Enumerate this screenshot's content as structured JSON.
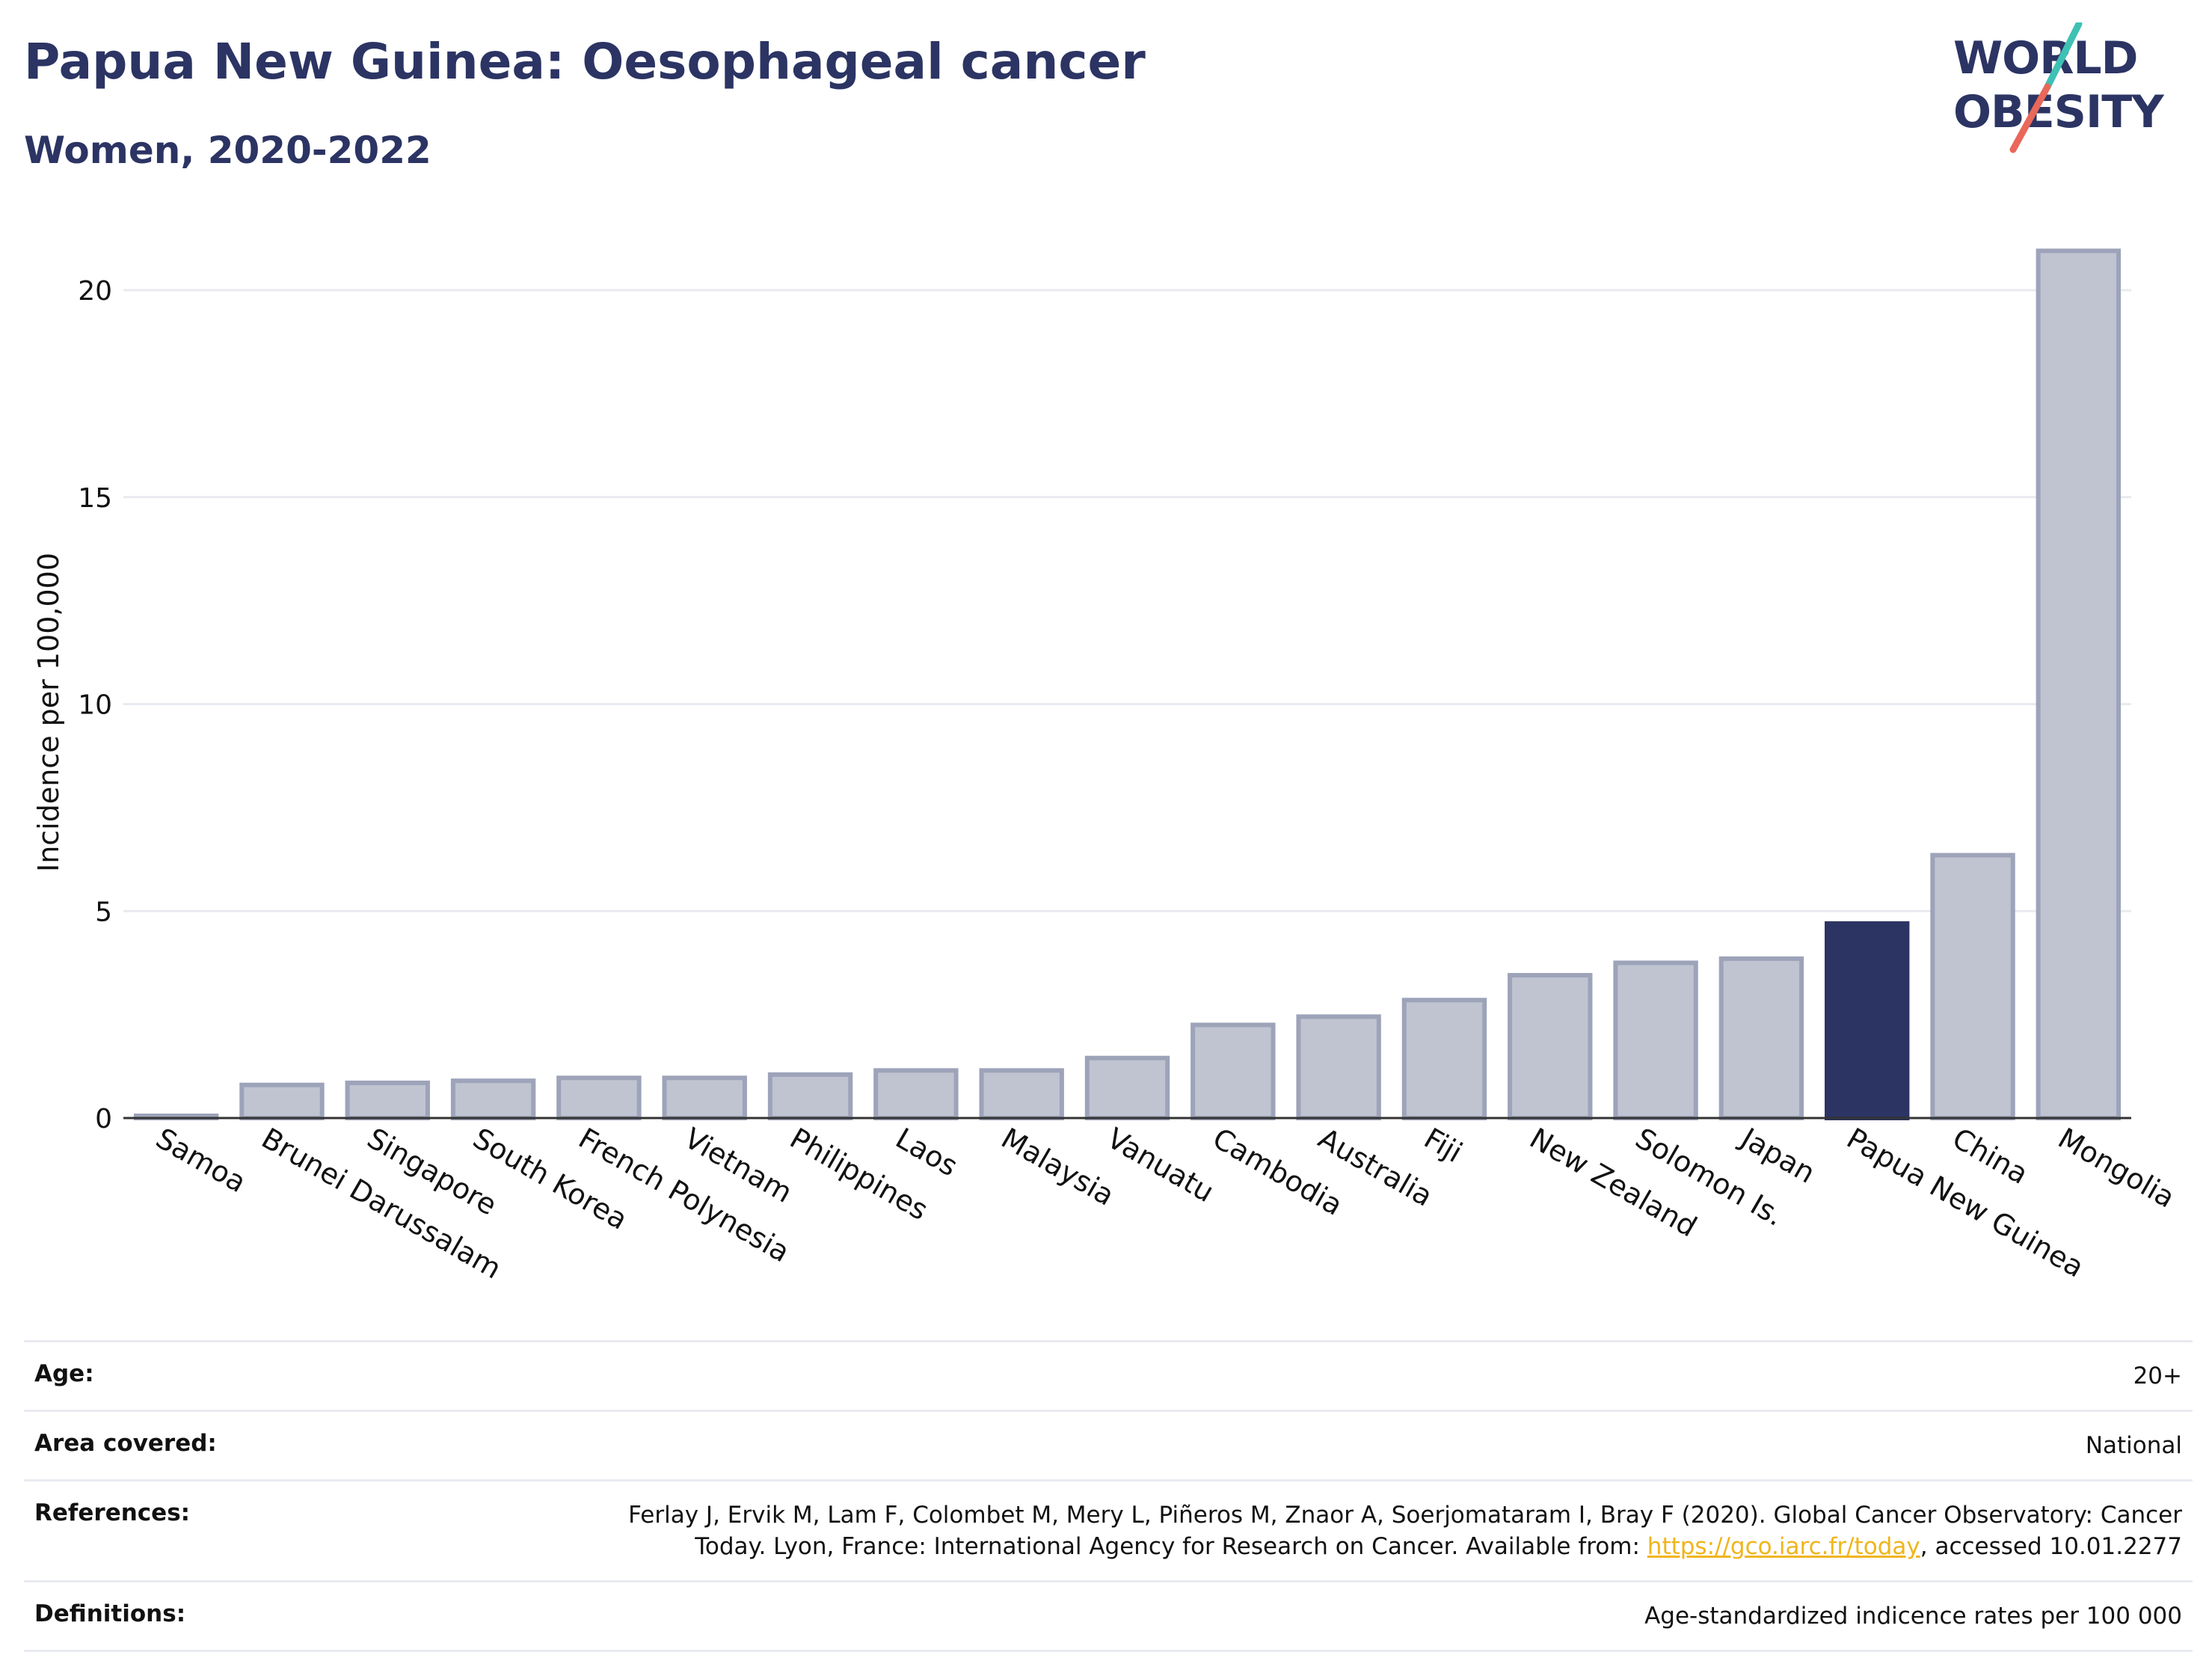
{
  "header": {
    "title": "Papua New Guinea: Oesophageal cancer",
    "subtitle": "Women, 2020-2022"
  },
  "logo": {
    "line1": "WORLD",
    "line2": "OBESITY",
    "slash_colors": [
      "#3ec1b4",
      "#e8685a"
    ],
    "text_color": "#2b3463"
  },
  "colors": {
    "highlight": "#2b3463",
    "bar_fill": "#c0c4d1",
    "bar_border": "#9da3b9",
    "grid": "#e8eaf0",
    "link": "#f0b51b"
  },
  "chart_data": {
    "type": "bar",
    "title": "Papua New Guinea: Oesophageal cancer",
    "subtitle": "Women, 2020-2022",
    "xlabel": "",
    "ylabel": "Incidence per 100,000",
    "ylim": [
      0,
      22
    ],
    "yticks": [
      0,
      5,
      10,
      15,
      20
    ],
    "grid": true,
    "highlight": "Papua New Guinea",
    "categories": [
      "Samoa",
      "Brunei Darussalam",
      "Singapore",
      "South Korea",
      "French Polynesia",
      "Vietnam",
      "Philippines",
      "Laos",
      "Malaysia",
      "Vanuatu",
      "Cambodia",
      "Australia",
      "Fiji",
      "New Zealand",
      "Solomon Is.",
      "Japan",
      "Papua New Guinea",
      "China",
      "Mongolia"
    ],
    "values": [
      0.05,
      0.8,
      0.85,
      0.9,
      0.97,
      0.97,
      1.05,
      1.15,
      1.15,
      1.45,
      2.25,
      2.45,
      2.85,
      3.45,
      3.75,
      3.85,
      4.7,
      6.35,
      20.95
    ]
  },
  "meta": {
    "age_label": "Age:",
    "age_value": "20+",
    "area_label": "Area covered:",
    "area_value": "National",
    "references_label": "References:",
    "references_text": "Ferlay J, Ervik M, Lam F, Colombet M, Mery L, Piñeros M, Znaor A, Soerjomataram I, Bray F (2020). Global Cancer Observatory: Cancer Today. Lyon, France: International Agency for Research on Cancer. Available from:",
    "references_link": "https://gco.iarc.fr/today",
    "references_suffix": ", accessed 10.01.2277",
    "definitions_label": "Definitions:",
    "definitions_value": "Age-standardized indicence rates per 100 000"
  }
}
